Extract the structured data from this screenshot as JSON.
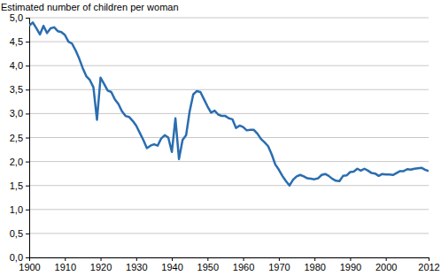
{
  "chart_data": {
    "type": "line",
    "y_label": "Estimated number of children per woman",
    "x": [
      1900,
      1901,
      1902,
      1903,
      1904,
      1905,
      1906,
      1907,
      1908,
      1909,
      1910,
      1911,
      1912,
      1913,
      1914,
      1915,
      1916,
      1917,
      1918,
      1919,
      1920,
      1921,
      1922,
      1923,
      1924,
      1925,
      1926,
      1927,
      1928,
      1929,
      1930,
      1931,
      1932,
      1933,
      1934,
      1935,
      1936,
      1937,
      1938,
      1939,
      1940,
      1941,
      1942,
      1943,
      1944,
      1945,
      1946,
      1947,
      1948,
      1949,
      1950,
      1951,
      1952,
      1953,
      1954,
      1955,
      1956,
      1957,
      1958,
      1959,
      1960,
      1961,
      1962,
      1963,
      1964,
      1965,
      1966,
      1967,
      1968,
      1969,
      1970,
      1971,
      1972,
      1973,
      1974,
      1975,
      1976,
      1977,
      1978,
      1979,
      1980,
      1981,
      1982,
      1983,
      1984,
      1985,
      1986,
      1987,
      1988,
      1989,
      1990,
      1991,
      1992,
      1993,
      1994,
      1995,
      1996,
      1997,
      1998,
      1999,
      2000,
      2001,
      2002,
      2003,
      2004,
      2005,
      2006,
      2007,
      2008,
      2009,
      2010,
      2011,
      2012
    ],
    "values": [
      4.83,
      4.9,
      4.78,
      4.65,
      4.83,
      4.68,
      4.78,
      4.8,
      4.72,
      4.7,
      4.64,
      4.5,
      4.46,
      4.32,
      4.15,
      3.95,
      3.78,
      3.7,
      3.55,
      2.87,
      3.75,
      3.62,
      3.48,
      3.45,
      3.3,
      3.2,
      3.05,
      2.95,
      2.93,
      2.85,
      2.75,
      2.6,
      2.45,
      2.28,
      2.33,
      2.36,
      2.33,
      2.48,
      2.55,
      2.5,
      2.2,
      2.9,
      2.05,
      2.45,
      2.55,
      3.05,
      3.4,
      3.47,
      3.45,
      3.3,
      3.15,
      3.02,
      3.06,
      2.98,
      2.95,
      2.95,
      2.9,
      2.88,
      2.7,
      2.75,
      2.72,
      2.65,
      2.66,
      2.66,
      2.58,
      2.47,
      2.4,
      2.32,
      2.15,
      1.94,
      1.83,
      1.7,
      1.59,
      1.5,
      1.62,
      1.69,
      1.72,
      1.69,
      1.65,
      1.64,
      1.63,
      1.65,
      1.72,
      1.74,
      1.7,
      1.64,
      1.6,
      1.59,
      1.7,
      1.71,
      1.78,
      1.79,
      1.85,
      1.81,
      1.85,
      1.81,
      1.76,
      1.75,
      1.7,
      1.74,
      1.73,
      1.73,
      1.72,
      1.76,
      1.8,
      1.8,
      1.84,
      1.83,
      1.85,
      1.86,
      1.87,
      1.83,
      1.8
    ],
    "color": "#2a6db0",
    "xlim": [
      1900,
      2012
    ],
    "xticks": [
      1900,
      1910,
      1920,
      1930,
      1940,
      1950,
      1960,
      1970,
      1980,
      1990,
      2000,
      2012
    ],
    "ylim": [
      0,
      5
    ],
    "yticks": [
      {
        "value": 0,
        "label": "0,0"
      },
      {
        "value": 0.5,
        "label": "0,5"
      },
      {
        "value": 1,
        "label": "1,0"
      },
      {
        "value": 1.5,
        "label": "1,5"
      },
      {
        "value": 2,
        "label": "2,0"
      },
      {
        "value": 2.5,
        "label": "2,5"
      },
      {
        "value": 3,
        "label": "3,0"
      },
      {
        "value": 3.5,
        "label": "3,5"
      },
      {
        "value": 4,
        "label": "4,0"
      },
      {
        "value": 4.5,
        "label": "4,5"
      },
      {
        "value": 5,
        "label": "5,0"
      }
    ],
    "grid": true
  }
}
